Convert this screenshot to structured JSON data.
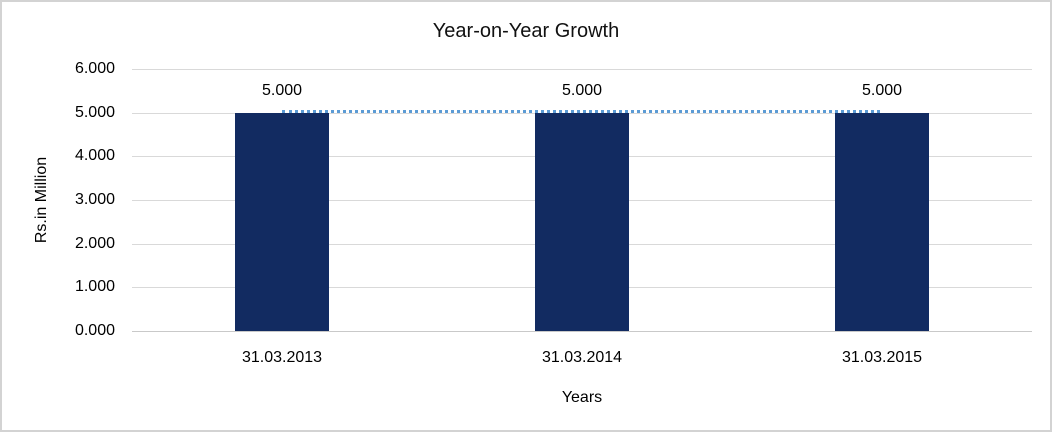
{
  "chart_data": {
    "type": "bar",
    "title": "Year-on-Year Growth",
    "xlabel": "Years",
    "ylabel": "Rs.in Million",
    "categories": [
      "31.03.2013",
      "31.03.2014",
      "31.03.2015"
    ],
    "values": [
      5.0,
      5.0,
      5.0
    ],
    "data_labels": [
      "5.000",
      "5.000",
      "5.000"
    ],
    "ytick_labels": [
      "6.000",
      "5.000",
      "4.000",
      "3.000",
      "2.000",
      "1.000",
      "0.000"
    ],
    "ylim": [
      0,
      6
    ],
    "ytick_step": 1.0,
    "grid": true,
    "legend_position": "none",
    "bar_color": "#122b61",
    "dotted_line_color": "#5b9bd5",
    "gridline_color": "#d9d9d9",
    "background_color": "#ffffff",
    "border_color": "#d3d3d3"
  }
}
